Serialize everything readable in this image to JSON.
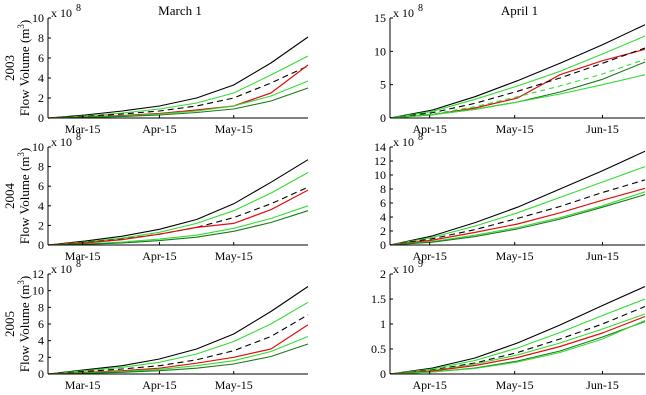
{
  "colors": {
    "bound": "#000000",
    "inner": "#33dd33",
    "observed": "#dd1111",
    "forecast_mean": "#000000",
    "median": "#1a7a1a"
  },
  "chart_data": [
    {
      "type": "line",
      "col_title": "March 1",
      "row_label": "2003",
      "ylabel": "Flow Volume (m3)",
      "multiplier": "x 10",
      "exponent": "8",
      "x": [
        0,
        15,
        30,
        45,
        60,
        75,
        90,
        105
      ],
      "xticks": [
        {
          "v": 14,
          "label": "Mar-15"
        },
        {
          "v": 45,
          "label": "Apr-15"
        },
        {
          "v": 75,
          "label": "May-15"
        }
      ],
      "xlim": [
        0,
        105
      ],
      "ylim": [
        0,
        10
      ],
      "yticks": [
        0,
        2,
        4,
        6,
        8,
        10
      ],
      "series": [
        {
          "role": "upper",
          "values": [
            0.0,
            0.3,
            0.7,
            1.2,
            2.0,
            3.3,
            5.5,
            8.1
          ]
        },
        {
          "role": "inner-upper",
          "values": [
            0.0,
            0.2,
            0.5,
            0.9,
            1.5,
            2.5,
            4.3,
            6.2
          ]
        },
        {
          "role": "mean",
          "values": [
            0.0,
            0.15,
            0.4,
            0.7,
            1.2,
            2.0,
            3.5,
            5.2
          ]
        },
        {
          "role": "observed",
          "values": [
            0.0,
            0.1,
            0.25,
            0.45,
            0.8,
            1.2,
            2.5,
            5.3
          ]
        },
        {
          "role": "inner-lower",
          "values": [
            0.0,
            0.08,
            0.2,
            0.4,
            0.7,
            1.2,
            2.2,
            3.7
          ]
        },
        {
          "role": "median",
          "values": [
            0.0,
            0.06,
            0.15,
            0.3,
            0.55,
            0.9,
            1.7,
            3.0
          ]
        }
      ]
    },
    {
      "type": "line",
      "col_title": "April 1",
      "row_label": "",
      "ylabel": "",
      "multiplier": "x 10",
      "exponent": "8",
      "x": [
        0,
        15,
        30,
        45,
        60,
        75,
        90
      ],
      "xticks": [
        {
          "v": 14,
          "label": "Apr-15"
        },
        {
          "v": 44,
          "label": "May-15"
        },
        {
          "v": 75,
          "label": "Jun-15"
        }
      ],
      "xlim": [
        0,
        90
      ],
      "ylim": [
        0,
        15
      ],
      "yticks": [
        0,
        5,
        10,
        15
      ],
      "series": [
        {
          "role": "upper",
          "values": [
            0.0,
            1.2,
            3.2,
            5.6,
            8.2,
            11.0,
            14.0
          ]
        },
        {
          "role": "inner-upper",
          "values": [
            0.0,
            1.0,
            2.8,
            4.8,
            7.0,
            9.6,
            12.3
          ]
        },
        {
          "role": "observed",
          "values": [
            0.0,
            0.5,
            1.5,
            3.0,
            6.5,
            8.6,
            10.3
          ]
        },
        {
          "role": "mean",
          "values": [
            0.0,
            0.8,
            2.2,
            4.0,
            6.0,
            8.2,
            10.5
          ]
        },
        {
          "role": "inner-dashed",
          "values": [
            0.0,
            0.6,
            1.7,
            3.2,
            4.8,
            6.6,
            8.8
          ]
        },
        {
          "role": "median",
          "values": [
            0.0,
            0.5,
            1.3,
            2.4,
            3.9,
            5.8,
            8.4
          ]
        },
        {
          "role": "inner-lower",
          "values": [
            0.0,
            0.5,
            1.3,
            2.4,
            3.6,
            5.0,
            6.5
          ]
        }
      ]
    },
    {
      "type": "line",
      "col_title": "",
      "row_label": "2004",
      "ylabel": "Flow Volume (m3)",
      "multiplier": "x 10",
      "exponent": "8",
      "x": [
        0,
        15,
        30,
        45,
        60,
        75,
        90,
        105
      ],
      "xticks": [
        {
          "v": 14,
          "label": "Mar-15"
        },
        {
          "v": 45,
          "label": "Apr-15"
        },
        {
          "v": 75,
          "label": "May-15"
        }
      ],
      "xlim": [
        0,
        105
      ],
      "ylim": [
        0,
        10
      ],
      "yticks": [
        0,
        2,
        4,
        6,
        8,
        10
      ],
      "series": [
        {
          "role": "upper",
          "values": [
            0.0,
            0.4,
            0.9,
            1.6,
            2.6,
            4.2,
            6.4,
            8.7
          ]
        },
        {
          "role": "inner-upper",
          "values": [
            0.0,
            0.3,
            0.7,
            1.3,
            2.2,
            3.5,
            5.3,
            7.4
          ]
        },
        {
          "role": "mean",
          "values": [
            0.0,
            0.25,
            0.6,
            1.1,
            1.8,
            2.8,
            4.2,
            5.9
          ]
        },
        {
          "role": "observed",
          "values": [
            0.0,
            0.2,
            0.55,
            1.1,
            1.8,
            2.2,
            3.6,
            5.6
          ]
        },
        {
          "role": "inner-lower",
          "values": [
            0.0,
            0.1,
            0.3,
            0.6,
            1.0,
            1.7,
            2.7,
            4.0
          ]
        },
        {
          "role": "median",
          "values": [
            0.0,
            0.08,
            0.2,
            0.45,
            0.8,
            1.4,
            2.3,
            3.5
          ]
        }
      ]
    },
    {
      "type": "line",
      "col_title": "",
      "row_label": "",
      "ylabel": "",
      "multiplier": "x 10",
      "exponent": "8",
      "x": [
        0,
        15,
        30,
        45,
        60,
        75,
        90
      ],
      "xticks": [
        {
          "v": 14,
          "label": "Apr-15"
        },
        {
          "v": 44,
          "label": "May-15"
        },
        {
          "v": 75,
          "label": "Jun-15"
        }
      ],
      "xlim": [
        0,
        90
      ],
      "ylim": [
        0,
        14
      ],
      "yticks": [
        0,
        2,
        4,
        6,
        8,
        10,
        12,
        14
      ],
      "series": [
        {
          "role": "upper",
          "values": [
            0.0,
            1.3,
            3.2,
            5.4,
            8.0,
            10.6,
            13.4
          ]
        },
        {
          "role": "inner-upper",
          "values": [
            0.0,
            1.1,
            2.7,
            4.6,
            6.8,
            9.0,
            11.2
          ]
        },
        {
          "role": "mean",
          "values": [
            0.0,
            0.9,
            2.2,
            3.8,
            5.5,
            7.5,
            9.3
          ]
        },
        {
          "role": "observed",
          "values": [
            0.0,
            0.7,
            1.8,
            3.0,
            4.6,
            6.4,
            8.1
          ]
        },
        {
          "role": "inner-lower",
          "values": [
            0.0,
            0.5,
            1.4,
            2.5,
            3.9,
            5.6,
            7.6
          ]
        },
        {
          "role": "median",
          "values": [
            0.0,
            0.4,
            1.2,
            2.3,
            3.7,
            5.4,
            7.2
          ]
        }
      ]
    },
    {
      "type": "line",
      "col_title": "",
      "row_label": "2005",
      "ylabel": "Flow Volume (m3)",
      "multiplier": "x 10",
      "exponent": "8",
      "x": [
        0,
        15,
        30,
        45,
        60,
        75,
        90,
        105
      ],
      "xticks": [
        {
          "v": 14,
          "label": "Mar-15"
        },
        {
          "v": 45,
          "label": "Apr-15"
        },
        {
          "v": 75,
          "label": "May-15"
        }
      ],
      "xlim": [
        0,
        105
      ],
      "ylim": [
        0,
        12
      ],
      "yticks": [
        0,
        2,
        4,
        6,
        8,
        10,
        12
      ],
      "series": [
        {
          "role": "upper",
          "values": [
            0.0,
            0.5,
            1.0,
            1.8,
            3.0,
            4.8,
            7.5,
            10.5
          ]
        },
        {
          "role": "inner-upper",
          "values": [
            0.0,
            0.4,
            0.8,
            1.4,
            2.4,
            3.9,
            6.0,
            8.6
          ]
        },
        {
          "role": "mean",
          "values": [
            0.0,
            0.3,
            0.6,
            1.0,
            1.7,
            2.8,
            4.5,
            7.1
          ]
        },
        {
          "role": "observed",
          "values": [
            0.0,
            0.2,
            0.4,
            0.7,
            1.3,
            2.0,
            3.0,
            5.9
          ]
        },
        {
          "role": "inner-lower",
          "values": [
            0.0,
            0.15,
            0.3,
            0.55,
            1.0,
            1.6,
            2.7,
            4.5
          ]
        },
        {
          "role": "median",
          "values": [
            0.0,
            0.1,
            0.2,
            0.4,
            0.7,
            1.2,
            2.1,
            3.6
          ]
        }
      ]
    },
    {
      "type": "line",
      "col_title": "",
      "row_label": "",
      "ylabel": "",
      "multiplier": "x 10",
      "exponent": "9",
      "x": [
        0,
        15,
        30,
        45,
        60,
        75,
        90
      ],
      "xticks": [
        {
          "v": 14,
          "label": "Apr-15"
        },
        {
          "v": 44,
          "label": "May-15"
        },
        {
          "v": 75,
          "label": "Jun-15"
        }
      ],
      "xlim": [
        0,
        90
      ],
      "ylim": [
        0,
        2
      ],
      "yticks": [
        0,
        0.5,
        1,
        1.5,
        2
      ],
      "series": [
        {
          "role": "upper",
          "values": [
            0.0,
            0.12,
            0.32,
            0.62,
            0.98,
            1.37,
            1.75
          ]
        },
        {
          "role": "inner-upper",
          "values": [
            0.0,
            0.1,
            0.27,
            0.52,
            0.83,
            1.17,
            1.5
          ]
        },
        {
          "role": "mean",
          "values": [
            0.0,
            0.08,
            0.22,
            0.43,
            0.7,
            1.0,
            1.35
          ]
        },
        {
          "role": "inner-mid",
          "values": [
            0.0,
            0.07,
            0.2,
            0.38,
            0.62,
            0.9,
            1.2
          ]
        },
        {
          "role": "observed",
          "values": [
            0.0,
            0.06,
            0.17,
            0.33,
            0.55,
            0.82,
            1.15
          ]
        },
        {
          "role": "median",
          "values": [
            0.0,
            0.04,
            0.12,
            0.26,
            0.46,
            0.74,
            1.05
          ]
        },
        {
          "role": "inner-lower",
          "values": [
            0.0,
            0.04,
            0.11,
            0.24,
            0.43,
            0.7,
            1.07
          ]
        }
      ]
    }
  ]
}
